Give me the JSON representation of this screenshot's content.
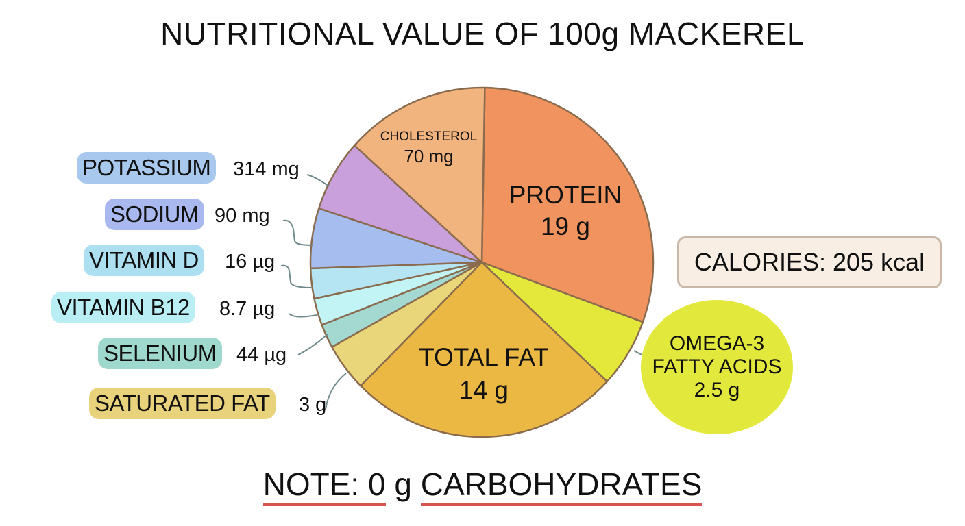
{
  "title": "NUTRITIONAL VALUE OF 100g MACKEREL",
  "calories": "CALORIES: 205 kcal",
  "note": {
    "prefix": "NOTE: 0",
    "middle": "g",
    "suffix": "CARBOHYDRATES",
    "underline_color": "#d9534f"
  },
  "chart_data": {
    "type": "pie",
    "title": "NUTRITIONAL VALUE OF 100g MACKEREL",
    "slices": [
      {
        "label": "PROTEIN",
        "value": "19 g",
        "sweep_deg": 109,
        "color": "#f0935e"
      },
      {
        "label": "OMEGA-3 FATTY ACIDS",
        "line1": "OMEGA-3",
        "line2": "FATTY ACIDS",
        "value": "2.5 g",
        "sweep_deg": 23,
        "color": "#e3e83a"
      },
      {
        "label": "TOTAL FAT",
        "value": "14 g",
        "sweep_deg": 92,
        "color": "#ebb844"
      },
      {
        "label": "SATURATED FAT",
        "value": "3 g",
        "sweep_deg": 16,
        "color": "#ead67a",
        "label_bg": "#e9d27c"
      },
      {
        "label": "SELENIUM",
        "value": "44 µg",
        "sweep_deg": 8,
        "color": "#a3d9d0",
        "label_bg": "#9fd8cc"
      },
      {
        "label": "VITAMIN B12",
        "value": "8.7 µg",
        "sweep_deg": 9,
        "color": "#c2f3f5",
        "label_bg": "#b8eef4"
      },
      {
        "label": "VITAMIN D",
        "value": "16 µg",
        "sweep_deg": 10,
        "color": "#b5e4f2",
        "label_bg": "#acdff0"
      },
      {
        "label": "SODIUM",
        "value": "90 mg",
        "sweep_deg": 20,
        "color": "#a6bdf0",
        "label_bg": "#a9b8ee"
      },
      {
        "label": "POTASSIUM",
        "value": "314 mg",
        "sweep_deg": 24,
        "color": "#c9a0dc",
        "label_bg": "#a8c8ee"
      },
      {
        "label": "CHOLESTEROL",
        "value": "70 mg",
        "sweep_deg": 49,
        "color": "#f2b47e"
      }
    ]
  }
}
